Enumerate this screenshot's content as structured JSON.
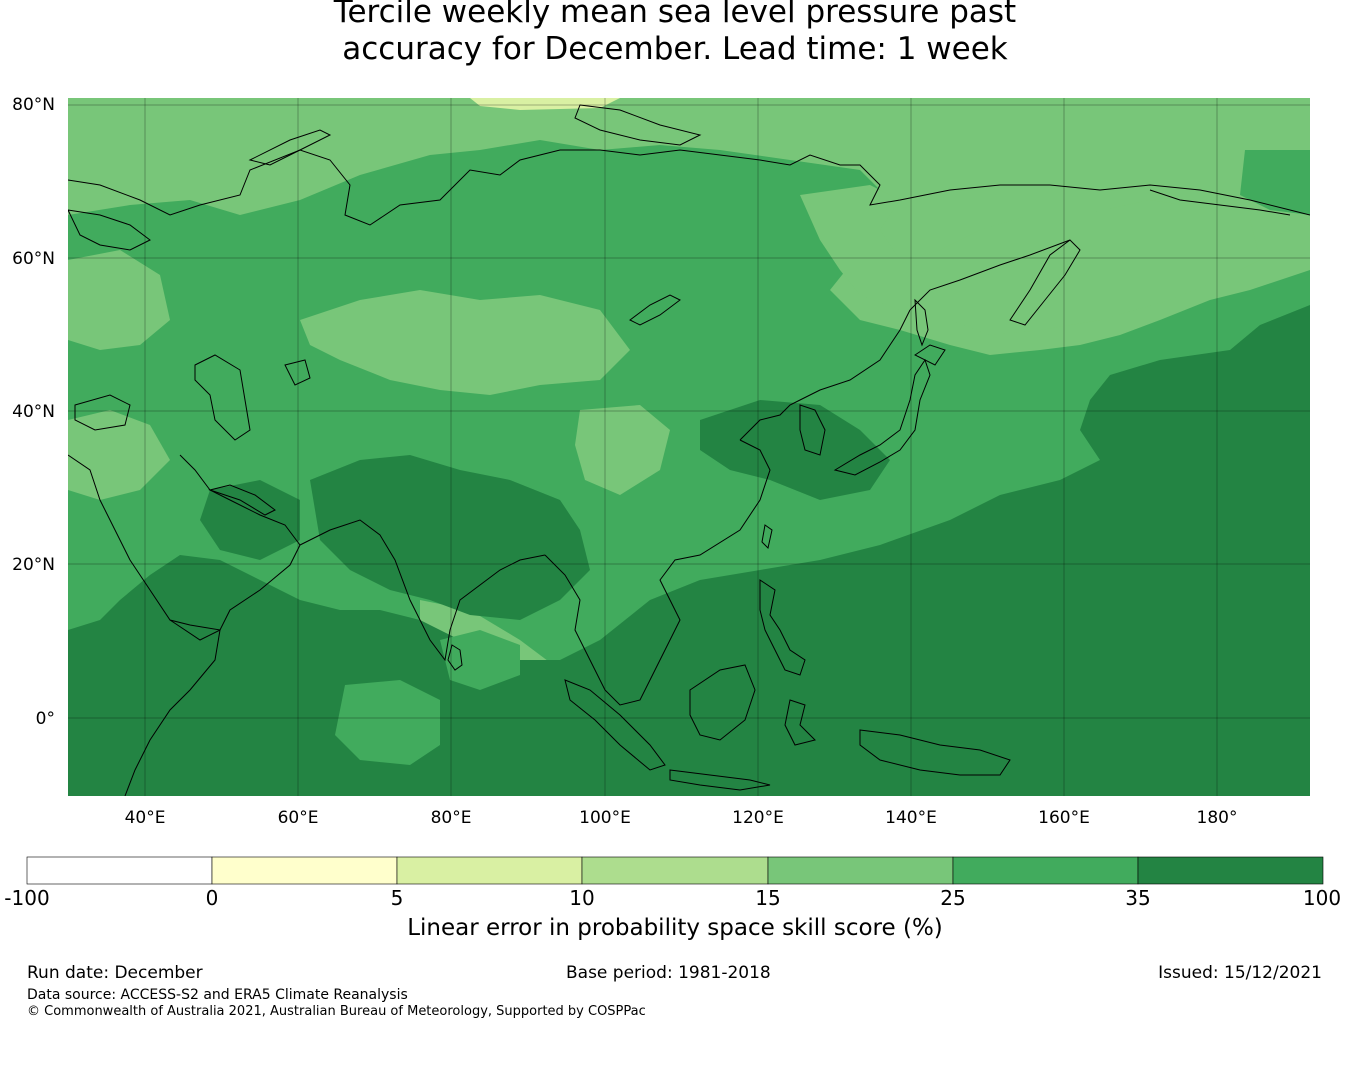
{
  "title": {
    "line1": "Tercile weekly mean sea level pressure past",
    "line2": "accuracy for December. Lead time: 1 week"
  },
  "map": {
    "lat_labels": [
      "80°N",
      "60°N",
      "40°N",
      "20°N",
      "0°"
    ],
    "lon_labels": [
      "40°E",
      "60°E",
      "80°E",
      "100°E",
      "120°E",
      "140°E",
      "160°E",
      "180°"
    ]
  },
  "colorbar": {
    "boundaries": [
      "-100",
      "0",
      "5",
      "10",
      "15",
      "25",
      "35",
      "100"
    ],
    "colors": [
      "#ffffff",
      "#ffffcc",
      "#d9f0a3",
      "#addd8e",
      "#78c679",
      "#41ab5d",
      "#238443"
    ],
    "label": "Linear error in probability space skill score (%)"
  },
  "footer": {
    "run_date": "Run date: December",
    "base_period": "Base period: 1981-2018",
    "issued": "Issued: 15/12/2021",
    "data_source": "Data source: ACCESS-S2 and ERA5 Climate Reanalysis",
    "copyright": "© Commonwealth of Australia 2021, Australian Bureau of Meteorology, Supported by COSPPac"
  }
}
